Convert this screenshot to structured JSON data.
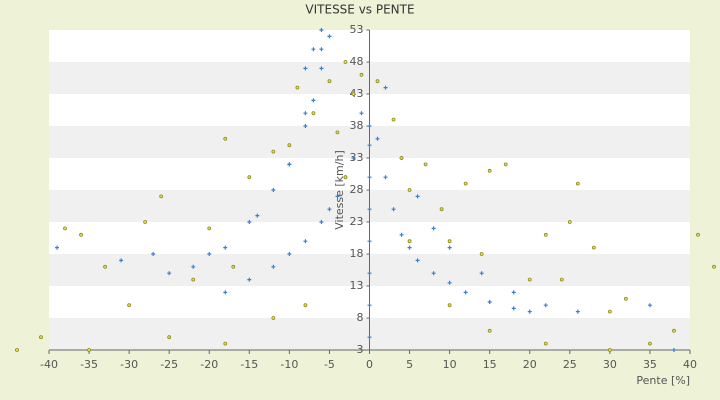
{
  "chart_data": {
    "type": "scatter",
    "title": "VITESSE vs PENTE",
    "x_label": "Pente [%]",
    "y_label": "Vitesse [km/h]",
    "xlim": [
      -40,
      40
    ],
    "xticks": [
      -40,
      -35,
      -30,
      -25,
      -20,
      -15,
      -10,
      -5,
      0,
      5,
      10,
      15,
      20,
      25,
      30,
      35,
      40
    ],
    "ylim": [
      3,
      53
    ],
    "yticks": [
      3,
      8,
      13,
      18,
      23,
      28,
      33,
      38,
      43,
      48,
      53
    ],
    "grid": true,
    "series": [
      {
        "color": "#3a7fd5",
        "x": [
          0,
          0,
          0,
          0,
          0,
          0,
          0,
          0,
          1,
          2,
          3,
          4,
          5,
          6,
          8,
          10,
          12,
          15,
          18,
          20,
          2,
          4,
          6,
          8,
          10,
          14,
          18,
          22,
          26,
          -1,
          -2,
          -3,
          -4,
          -5,
          -6,
          -8,
          -10,
          -12,
          -15,
          -18,
          -5,
          -6,
          -7,
          -8,
          -10,
          -12,
          -15,
          -20,
          -25,
          -6,
          -8,
          -10,
          -14,
          -18,
          -22,
          -39,
          -31,
          -27,
          -8,
          -7,
          -6,
          38,
          35
        ],
        "values": [
          5,
          10,
          15,
          20,
          25,
          30,
          35,
          38,
          36,
          30,
          25,
          21,
          19,
          17,
          15,
          13.5,
          12,
          10.5,
          9.5,
          9,
          44,
          33,
          27,
          22,
          19,
          15,
          12,
          10,
          9,
          40,
          33,
          30,
          27,
          25,
          23,
          20,
          18,
          16,
          14,
          12,
          52,
          47,
          42,
          38,
          32,
          28,
          23,
          18,
          15,
          50,
          40,
          32,
          24,
          19,
          16,
          19,
          17,
          18,
          47,
          50,
          53,
          3,
          10
        ]
      },
      {
        "color": "#8a8a10",
        "x": [
          -44,
          -41,
          -38,
          -36,
          -33,
          -30,
          -28,
          -26,
          -22,
          -20,
          -18,
          -17,
          -15,
          -12,
          -10,
          -9,
          -7,
          -5,
          -3,
          -2,
          3,
          5,
          7,
          9,
          10,
          12,
          14,
          15,
          17,
          20,
          22,
          24,
          25,
          26,
          28,
          30,
          32,
          35,
          38,
          41,
          43,
          -35,
          -25,
          -18,
          -12,
          -8,
          5,
          10,
          15,
          22,
          30,
          -4,
          -3,
          4,
          -1,
          1
        ],
        "values": [
          3,
          5,
          22,
          21,
          16,
          10,
          23,
          27,
          14,
          22,
          36,
          16,
          30,
          34,
          35,
          44,
          40,
          45,
          30,
          43,
          39,
          28,
          32,
          25,
          20,
          29,
          18,
          31,
          32,
          14,
          21,
          14,
          23,
          29,
          19,
          9,
          11,
          4,
          6,
          21,
          16,
          3,
          5,
          4,
          8,
          10,
          20,
          10,
          6,
          4,
          3,
          37,
          48,
          33,
          46,
          45
        ]
      }
    ]
  }
}
